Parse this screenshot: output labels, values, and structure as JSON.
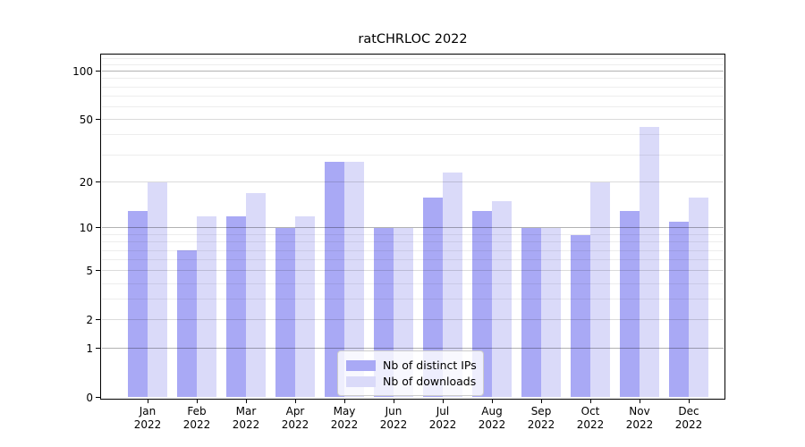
{
  "chart_data": {
    "type": "bar",
    "title": "ratCHRLOC 2022",
    "categories": [
      "Jan",
      "Feb",
      "Mar",
      "Apr",
      "May",
      "Jun",
      "Jul",
      "Aug",
      "Sep",
      "Oct",
      "Nov",
      "Dec"
    ],
    "year": "2022",
    "series": [
      {
        "name": "Nb of distinct IPs",
        "color": "#a9a9f5",
        "values": [
          13,
          7,
          12,
          10,
          27,
          10,
          16,
          13,
          10,
          9,
          13,
          11
        ]
      },
      {
        "name": "Nb of downloads",
        "color": "#dadaf9",
        "values": [
          20,
          12,
          17,
          12,
          27,
          10,
          23,
          15,
          10,
          20,
          45,
          16
        ]
      }
    ],
    "y_ticks": [
      0,
      1,
      2,
      5,
      10,
      20,
      50,
      100
    ],
    "y_minor_gridlines": [
      3,
      4,
      6,
      7,
      8,
      9,
      30,
      40,
      60,
      70,
      80,
      90,
      110,
      120
    ],
    "y_scale": "log1p",
    "ylim": [
      0,
      127
    ],
    "grid": true,
    "legend_position": "lower center"
  },
  "colors": {
    "grid_major_ticks": [
      "1",
      "10",
      "100"
    ],
    "axis": "#000000",
    "legend_border": "#cccccc"
  }
}
